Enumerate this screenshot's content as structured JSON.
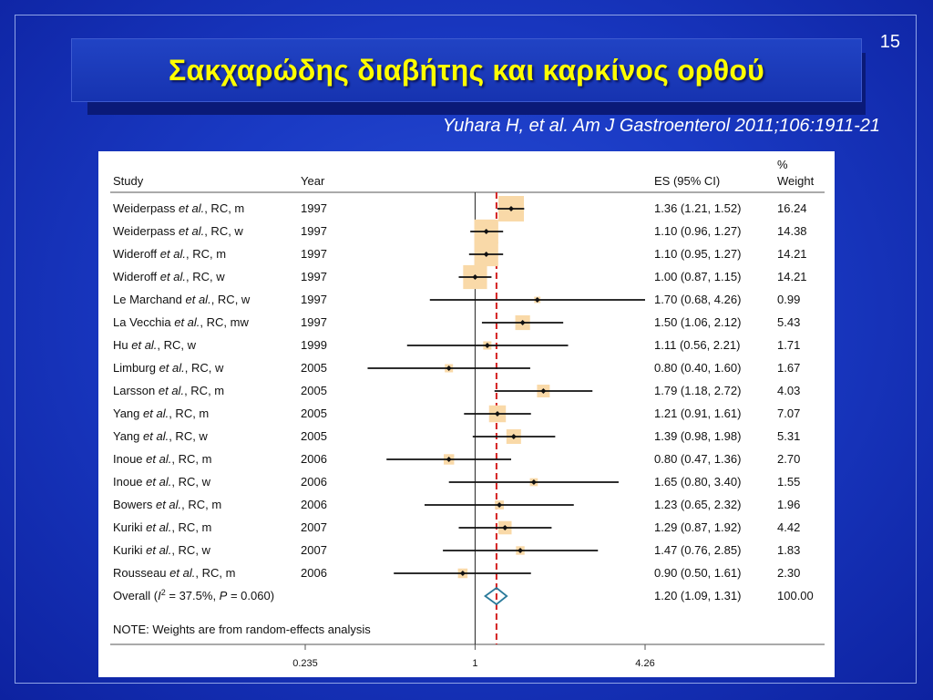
{
  "slide_number": "15",
  "title": "Σακχαρώδης διαβήτης και καρκίνος ορθού",
  "citation": "Yuhara H, et al. Am J Gastroenterol 2011;106:1911-21",
  "colors": {
    "background": "#1a3ac4",
    "title_text": "#ffff00",
    "weight_box": "#f9d9a8",
    "overall_line": "#d42020",
    "diamond": "#2a7a9a"
  },
  "chart_data": {
    "type": "forest",
    "headers": {
      "study": "Study",
      "year": "Year",
      "es": "ES (95% CI)",
      "weight_top": "%",
      "weight_bottom": "Weight"
    },
    "x_scale": "log",
    "xlim": [
      0.235,
      4.26
    ],
    "x_ticks": [
      {
        "value": 0.235,
        "label": "0.235"
      },
      {
        "value": 1,
        "label": "1"
      },
      {
        "value": 4.26,
        "label": "4.26"
      }
    ],
    "null_value": 1,
    "studies": [
      {
        "name": "Weiderpass",
        "suffix": ", RC, m",
        "year": "1997",
        "es": 1.36,
        "lo": 1.21,
        "hi": 1.52,
        "es_text": "1.36 (1.21, 1.52)",
        "weight": 16.24,
        "weight_text": "16.24"
      },
      {
        "name": "Weiderpass",
        "suffix": ", RC, w",
        "year": "1997",
        "es": 1.1,
        "lo": 0.96,
        "hi": 1.27,
        "es_text": "1.10 (0.96, 1.27)",
        "weight": 14.38,
        "weight_text": "14.38"
      },
      {
        "name": "Wideroff",
        "suffix": ", RC, m",
        "year": "1997",
        "es": 1.1,
        "lo": 0.95,
        "hi": 1.27,
        "es_text": "1.10 (0.95, 1.27)",
        "weight": 14.21,
        "weight_text": "14.21"
      },
      {
        "name": "Wideroff",
        "suffix": ", RC, w",
        "year": "1997",
        "es": 1.0,
        "lo": 0.87,
        "hi": 1.15,
        "es_text": "1.00 (0.87, 1.15)",
        "weight": 14.21,
        "weight_text": "14.21"
      },
      {
        "name": "Le Marchand",
        "suffix": ", RC, w",
        "year": "1997",
        "es": 1.7,
        "lo": 0.68,
        "hi": 4.26,
        "es_text": "1.70 (0.68, 4.26)",
        "weight": 0.99,
        "weight_text": "0.99"
      },
      {
        "name": "La Vecchia",
        "suffix": ", RC, mw",
        "year": "1997",
        "es": 1.5,
        "lo": 1.06,
        "hi": 2.12,
        "es_text": "1.50 (1.06, 2.12)",
        "weight": 5.43,
        "weight_text": "5.43"
      },
      {
        "name": "Hu",
        "suffix": ", RC, w",
        "year": "1999",
        "es": 1.11,
        "lo": 0.56,
        "hi": 2.21,
        "es_text": "1.11 (0.56, 2.21)",
        "weight": 1.71,
        "weight_text": "1.71"
      },
      {
        "name": "Limburg",
        "suffix": ", RC, w",
        "year": "2005",
        "es": 0.8,
        "lo": 0.4,
        "hi": 1.6,
        "es_text": "0.80 (0.40, 1.60)",
        "weight": 1.67,
        "weight_text": "1.67"
      },
      {
        "name": "Larsson",
        "suffix": ", RC, m",
        "year": "2005",
        "es": 1.79,
        "lo": 1.18,
        "hi": 2.72,
        "es_text": "1.79 (1.18, 2.72)",
        "weight": 4.03,
        "weight_text": "4.03"
      },
      {
        "name": "Yang",
        "suffix": ", RC, m",
        "year": "2005",
        "es": 1.21,
        "lo": 0.91,
        "hi": 1.61,
        "es_text": "1.21 (0.91, 1.61)",
        "weight": 7.07,
        "weight_text": "7.07"
      },
      {
        "name": "Yang",
        "suffix": ", RC, w",
        "year": "2005",
        "es": 1.39,
        "lo": 0.98,
        "hi": 1.98,
        "es_text": "1.39 (0.98, 1.98)",
        "weight": 5.31,
        "weight_text": "5.31"
      },
      {
        "name": "Inoue",
        "suffix": ", RC, m",
        "year": "2006",
        "es": 0.8,
        "lo": 0.47,
        "hi": 1.36,
        "es_text": "0.80 (0.47, 1.36)",
        "weight": 2.7,
        "weight_text": "2.70"
      },
      {
        "name": "Inoue",
        "suffix": ", RC, w",
        "year": "2006",
        "es": 1.65,
        "lo": 0.8,
        "hi": 3.4,
        "es_text": "1.65 (0.80, 3.40)",
        "weight": 1.55,
        "weight_text": "1.55"
      },
      {
        "name": "Bowers",
        "suffix": ", RC, m",
        "year": "2006",
        "es": 1.23,
        "lo": 0.65,
        "hi": 2.32,
        "es_text": "1.23 (0.65, 2.32)",
        "weight": 1.96,
        "weight_text": "1.96"
      },
      {
        "name": "Kuriki",
        "suffix": ", RC, m",
        "year": "2007",
        "es": 1.29,
        "lo": 0.87,
        "hi": 1.92,
        "es_text": "1.29 (0.87, 1.92)",
        "weight": 4.42,
        "weight_text": "4.42"
      },
      {
        "name": "Kuriki",
        "suffix": ", RC, w",
        "year": "2007",
        "es": 1.47,
        "lo": 0.76,
        "hi": 2.85,
        "es_text": "1.47 (0.76, 2.85)",
        "weight": 1.83,
        "weight_text": "1.83"
      },
      {
        "name": "Rousseau",
        "suffix": ", RC, m",
        "year": "2006",
        "es": 0.9,
        "lo": 0.5,
        "hi": 1.61,
        "es_text": "0.90 (0.50, 1.61)",
        "weight": 2.3,
        "weight_text": "2.30"
      }
    ],
    "overall": {
      "label": "Overall",
      "i2_text": "= 37.5%, ",
      "p_text": "= 0.060)",
      "es": 1.2,
      "lo": 1.09,
      "hi": 1.31,
      "es_text": "1.20 (1.09, 1.31)",
      "weight_text": "100.00"
    },
    "note": "NOTE: Weights are from random-effects analysis"
  }
}
